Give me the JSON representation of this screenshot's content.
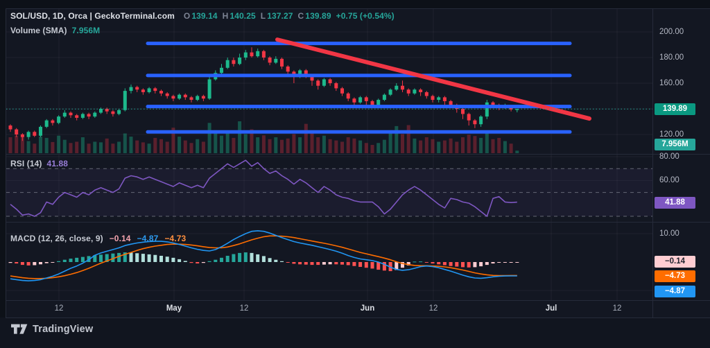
{
  "header": {
    "title": "SOL/USD, 1D, Orca | GeckoTerminal.com",
    "ohlc": {
      "o_label": "O",
      "o": "139.14",
      "h_label": "H",
      "h": "140.25",
      "l_label": "L",
      "l": "137.27",
      "c_label": "C",
      "c": "139.89",
      "change": "+0.75 (+0.54%)"
    },
    "volume_label": "Volume (SMA)",
    "volume_value": "7.956M"
  },
  "rsi_legend": {
    "label": "RSI",
    "params": "(14)",
    "value": "41.88"
  },
  "macd_legend": {
    "label": "MACD",
    "params": "(12, 26, close, 9)",
    "hist": "−0.14",
    "macd": "−4.87",
    "signal": "−4.73"
  },
  "price_axis": {
    "ticks": [
      {
        "label": "200.00",
        "y": 46
      },
      {
        "label": "180.00",
        "y": 83
      },
      {
        "label": "160.00",
        "y": 120
      },
      {
        "label": "120.00",
        "y": 194
      },
      {
        "label": "80.00",
        "y": 226
      },
      {
        "label": "60.00",
        "y": 260
      },
      {
        "label": "10.00",
        "y": 337
      }
    ],
    "badges": [
      {
        "name": "last-price-badge",
        "label": "139.89",
        "y": 157,
        "bg": "#0a9981",
        "fg": "#ffffff"
      },
      {
        "name": "volume-sma-badge",
        "label": "7.956M",
        "y": 208,
        "bg": "#26a69a",
        "fg": "#ffffff"
      },
      {
        "name": "rsi-value-badge",
        "label": "41.88",
        "y": 292,
        "bg": "#7e57c2",
        "fg": "#ffffff"
      },
      {
        "name": "macd-hist-badge",
        "label": "−0.14",
        "y": 377,
        "bg": "#ffcdd2",
        "fg": "#1e222d"
      },
      {
        "name": "macd-signal-badge",
        "label": "−4.73",
        "y": 398,
        "bg": "#ff6d00",
        "fg": "#ffffff"
      },
      {
        "name": "macd-line-badge",
        "label": "−4.87",
        "y": 420,
        "bg": "#2196f3",
        "fg": "#ffffff"
      }
    ]
  },
  "time_axis": {
    "ticks": [
      {
        "label": "12",
        "x": 85,
        "major": false
      },
      {
        "label": "May",
        "x": 251,
        "major": true
      },
      {
        "label": "12",
        "x": 352,
        "major": false
      },
      {
        "label": "Jun",
        "x": 530,
        "major": true
      },
      {
        "label": "12",
        "x": 625,
        "major": false
      },
      {
        "label": "Jul",
        "x": 795,
        "major": true
      },
      {
        "label": "12",
        "x": 890,
        "major": false
      }
    ]
  },
  "footer": {
    "brand": "TradingView"
  },
  "colors": {
    "bg_outer": "#0d1118",
    "bg_chart": "#131722",
    "grid": "rgba(255,255,255,0.05)",
    "border": "#262b3a",
    "up": "#1db98c",
    "down": "#f23645",
    "vol_up": "rgba(29,185,140,0.38)",
    "vol_down": "rgba(242,54,69,0.32)",
    "support_line": "#2962ff",
    "trend_line": "#f23645",
    "last_price_line": "#26a69a",
    "rsi_line": "#7e57c2",
    "rsi_band": "rgba(126,87,194,0.08)",
    "rsi_levels": "rgba(195,198,208,0.45)",
    "macd_line": "#2196f3",
    "signal_line": "#ff6d00",
    "hist_up_grow": "#26a69a",
    "hist_up_fall": "#b2dfdb",
    "hist_dn_fall": "#ff5252",
    "hist_dn_grow": "#ffcdd2"
  },
  "chart_data": [
    {
      "type": "candlestick",
      "title": "SOL/USD, 1D, Orca | GeckoTerminal.com",
      "last_ohlc": {
        "open": 139.14,
        "high": 140.25,
        "low": 137.27,
        "close": 139.89,
        "change": "+0.75 (+0.54%)"
      },
      "ylim": [
        105,
        218
      ],
      "price_gridlines": [
        200,
        180,
        160,
        140,
        120
      ],
      "last_price": 139.89,
      "volume_sma_label": "7.956M",
      "candles": [
        [
          127,
          128,
          122,
          124
        ],
        [
          124,
          125,
          118,
          120
        ],
        [
          120,
          121,
          115,
          118
        ],
        [
          118,
          123,
          116,
          122
        ],
        [
          122,
          123,
          118,
          119
        ],
        [
          119,
          127,
          118,
          126
        ],
        [
          126,
          132,
          125,
          131
        ],
        [
          131,
          132,
          127,
          129
        ],
        [
          129,
          135,
          128,
          134
        ],
        [
          134,
          139,
          133,
          137
        ],
        [
          137,
          138,
          133,
          135
        ],
        [
          135,
          136,
          131,
          133
        ],
        [
          133,
          137,
          132,
          136
        ],
        [
          136,
          137,
          132,
          134
        ],
        [
          134,
          138,
          133,
          137
        ],
        [
          137,
          141,
          136,
          140
        ],
        [
          140,
          141,
          136,
          138
        ],
        [
          138,
          139,
          134,
          136
        ],
        [
          136,
          140,
          135,
          139
        ],
        [
          139,
          156,
          138,
          154
        ],
        [
          154,
          159,
          152,
          157
        ],
        [
          157,
          158,
          153,
          155
        ],
        [
          155,
          156,
          151,
          153
        ],
        [
          153,
          157,
          152,
          156
        ],
        [
          156,
          157,
          152,
          154
        ],
        [
          154,
          155,
          150,
          152
        ],
        [
          152,
          153,
          148,
          150
        ],
        [
          150,
          151,
          146,
          148
        ],
        [
          148,
          152,
          147,
          151
        ],
        [
          151,
          152,
          147,
          149
        ],
        [
          149,
          150,
          145,
          147
        ],
        [
          147,
          151,
          146,
          150
        ],
        [
          150,
          151,
          146,
          148
        ],
        [
          148,
          165,
          147,
          163
        ],
        [
          163,
          170,
          162,
          168
        ],
        [
          168,
          175,
          166,
          172
        ],
        [
          172,
          180,
          171,
          178
        ],
        [
          178,
          180,
          173,
          175
        ],
        [
          175,
          183,
          174,
          180
        ],
        [
          180,
          186,
          178,
          184
        ],
        [
          184,
          188,
          180,
          181
        ],
        [
          181,
          187,
          180,
          185
        ],
        [
          185,
          186,
          178,
          180
        ],
        [
          180,
          181,
          174,
          176
        ],
        [
          176,
          181,
          175,
          179
        ],
        [
          179,
          180,
          171,
          173
        ],
        [
          173,
          174,
          167,
          169
        ],
        [
          169,
          170,
          160,
          165
        ],
        [
          165,
          171,
          164,
          170
        ],
        [
          170,
          171,
          164,
          166
        ],
        [
          166,
          167,
          158,
          162
        ],
        [
          162,
          163,
          155,
          158
        ],
        [
          158,
          164,
          157,
          163
        ],
        [
          163,
          164,
          158,
          160
        ],
        [
          160,
          161,
          154,
          156
        ],
        [
          156,
          157,
          150,
          152
        ],
        [
          152,
          153,
          146,
          148
        ],
        [
          148,
          149,
          141,
          145
        ],
        [
          145,
          150,
          144,
          149
        ],
        [
          149,
          150,
          143,
          146
        ],
        [
          146,
          147,
          141,
          143
        ],
        [
          143,
          148,
          142,
          147
        ],
        [
          147,
          152,
          146,
          151
        ],
        [
          151,
          156,
          150,
          155
        ],
        [
          155,
          160,
          154,
          158
        ],
        [
          158,
          162,
          153,
          155
        ],
        [
          155,
          156,
          150,
          152
        ],
        [
          152,
          156,
          151,
          155
        ],
        [
          155,
          156,
          150,
          153
        ],
        [
          153,
          154,
          148,
          150
        ],
        [
          150,
          151,
          145,
          147
        ],
        [
          147,
          150,
          145,
          149
        ],
        [
          149,
          150,
          143,
          146
        ],
        [
          146,
          147,
          141,
          143
        ],
        [
          143,
          144,
          137,
          140
        ],
        [
          140,
          141,
          132,
          136
        ],
        [
          136,
          137,
          127,
          131
        ],
        [
          131,
          132,
          125,
          128
        ],
        [
          128,
          135,
          126,
          134
        ],
        [
          134,
          147,
          132,
          145
        ],
        [
          145,
          146,
          141,
          143
        ],
        [
          143,
          144,
          139,
          141
        ],
        [
          141,
          144,
          140,
          142
        ],
        [
          142,
          143,
          138,
          139.5
        ],
        [
          139.14,
          140.25,
          137.27,
          139.89
        ]
      ],
      "volumes_rel": [
        0.5,
        0.55,
        0.6,
        0.38,
        0.3,
        0.52,
        0.48,
        0.35,
        0.55,
        0.42,
        0.32,
        0.36,
        0.5,
        0.3,
        0.36,
        0.34,
        0.46,
        0.3,
        0.36,
        0.62,
        0.52,
        0.4,
        0.34,
        0.3,
        0.48,
        0.44,
        0.36,
        0.8,
        0.52,
        0.4,
        0.32,
        0.44,
        0.36,
        0.95,
        0.72,
        0.55,
        0.65,
        0.48,
        1.0,
        0.6,
        0.75,
        0.5,
        0.56,
        0.44,
        0.5,
        0.42,
        0.46,
        0.6,
        0.5,
        0.92,
        0.65,
        0.5,
        0.55,
        0.44,
        0.4,
        0.36,
        0.5,
        0.46,
        0.4,
        0.32,
        0.26,
        0.32,
        0.42,
        0.72,
        0.85,
        0.6,
        0.88,
        0.46,
        0.4,
        0.5,
        0.44,
        0.36,
        0.4,
        0.46,
        0.36,
        0.5,
        0.58,
        0.54,
        0.48,
        0.62,
        0.44,
        0.48,
        0.38,
        0.3,
        0.08
      ],
      "overlays": {
        "support_lines": {
          "prices": [
            191,
            166,
            141.8,
            122
          ],
          "x_span": [
            213,
            822
          ]
        },
        "trendline": {
          "x1": 400,
          "price1": 194,
          "x2": 850,
          "price2": 132.4
        }
      }
    },
    {
      "type": "line",
      "name": "RSI (14)",
      "last_value": 41.88,
      "levels": [
        70,
        50,
        30
      ],
      "ylim": [
        25,
        82
      ],
      "values": [
        40,
        36,
        31,
        32,
        30,
        33,
        42,
        40,
        46,
        50,
        48,
        46,
        50,
        48,
        52,
        54,
        52,
        50,
        53,
        62,
        64,
        63,
        61,
        63,
        61,
        59,
        57,
        55,
        58,
        56,
        54,
        56,
        54,
        62,
        66,
        70,
        74,
        71,
        74,
        77,
        72,
        75,
        70,
        66,
        68,
        64,
        61,
        57,
        61,
        58,
        54,
        50,
        55,
        52,
        48,
        46,
        45,
        43,
        42,
        42,
        42,
        38,
        32,
        36,
        42,
        48,
        52,
        55,
        52,
        48,
        44,
        40,
        37,
        45,
        44,
        42,
        41,
        38,
        34,
        30,
        45,
        46.5,
        42,
        41.5,
        41.88
      ]
    },
    {
      "type": "macd",
      "name": "MACD (12, 26, close, 9)",
      "last_values": {
        "histogram": -0.14,
        "macd": -4.87,
        "signal": -4.73
      },
      "ylim": [
        -13,
        14
      ],
      "gridlines": [
        10,
        -10
      ],
      "macd": [
        -5.9,
        -6.2,
        -6.5,
        -6.6,
        -6.5,
        -6.2,
        -5.6,
        -5.0,
        -4.2,
        -3.2,
        -2.2,
        -1.4,
        -0.4,
        0.8,
        2.4,
        3.2,
        3.8,
        4.4,
        5.0,
        5.8,
        6.3,
        6.7,
        7.0,
        7.2,
        7.3,
        7.3,
        7.1,
        6.7,
        6.2,
        5.6,
        5.0,
        4.5,
        4.1,
        3.9,
        4.4,
        5.4,
        6.6,
        7.9,
        9.0,
        10.0,
        10.8,
        11.0,
        10.8,
        10.2,
        9.4,
        8.6,
        7.9,
        7.2,
        6.7,
        6.3,
        5.9,
        5.4,
        4.9,
        4.4,
        3.8,
        3.1,
        2.3,
        1.6,
        1.1,
        0.8,
        0.5,
        0.0,
        -0.8,
        -1.8,
        -2.6,
        -2.9,
        -2.7,
        -2.2,
        -1.6,
        -1.4,
        -1.6,
        -2.0,
        -2.6,
        -3.2,
        -3.9,
        -4.6,
        -5.2,
        -5.6,
        -5.7,
        -5.5,
        -5.2,
        -5.0,
        -4.9,
        -4.88,
        -4.87
      ],
      "signal": [
        -4.9,
        -5.2,
        -5.5,
        -5.7,
        -5.8,
        -5.8,
        -5.7,
        -5.5,
        -5.2,
        -4.8,
        -4.3,
        -3.7,
        -3.0,
        -2.2,
        -1.3,
        -0.4,
        0.4,
        1.2,
        2.0,
        2.7,
        3.4,
        4.1,
        4.7,
        5.2,
        5.6,
        5.9,
        6.2,
        6.3,
        6.3,
        6.2,
        6.0,
        5.7,
        5.4,
        5.1,
        5.0,
        5.0,
        5.3,
        5.8,
        6.4,
        7.1,
        7.8,
        8.4,
        8.9,
        9.2,
        9.2,
        9.1,
        8.9,
        8.6,
        8.2,
        7.8,
        7.4,
        7.0,
        6.6,
        6.2,
        5.7,
        5.2,
        4.6,
        4.0,
        3.4,
        2.9,
        2.4,
        1.9,
        1.4,
        0.8,
        0.1,
        -0.5,
        -0.9,
        -1.2,
        -1.3,
        -1.3,
        -1.4,
        -1.5,
        -1.7,
        -2.0,
        -2.4,
        -2.8,
        -3.3,
        -3.8,
        -4.2,
        -4.5,
        -4.7,
        -4.75,
        -4.75,
        -4.74,
        -4.73
      ],
      "histogram": [
        -0.3,
        -0.5,
        -1.0,
        -1.2,
        -1.1,
        -0.8,
        -0.4,
        -0.2,
        0.3,
        0.8,
        1.2,
        1.5,
        1.8,
        2.1,
        2.4,
        2.6,
        2.8,
        3.0,
        3.2,
        3.4,
        3.3,
        3.1,
        2.9,
        2.7,
        2.5,
        2.2,
        1.9,
        1.5,
        1.0,
        0.4,
        -0.3,
        -0.5,
        -0.3,
        0.3,
        0.8,
        1.5,
        2.2,
        2.8,
        3.2,
        3.4,
        3.2,
        2.7,
        2.1,
        1.4,
        0.8,
        0.3,
        -0.2,
        -0.6,
        -0.8,
        -0.9,
        -1.0,
        -1.0,
        -0.9,
        -0.8,
        -0.8,
        -0.9,
        -1.1,
        -1.4,
        -1.7,
        -2.0,
        -2.3,
        -2.7,
        -3.0,
        -3.2,
        -2.8,
        -2.0,
        -1.2,
        0.15,
        0.2,
        -0.2,
        -0.5,
        -0.8,
        -1.1,
        -1.4,
        -1.6,
        -1.8,
        -1.9,
        -1.8,
        -1.5,
        -1.0,
        -0.5,
        -0.25,
        -0.18,
        -0.15,
        -0.14
      ]
    }
  ]
}
